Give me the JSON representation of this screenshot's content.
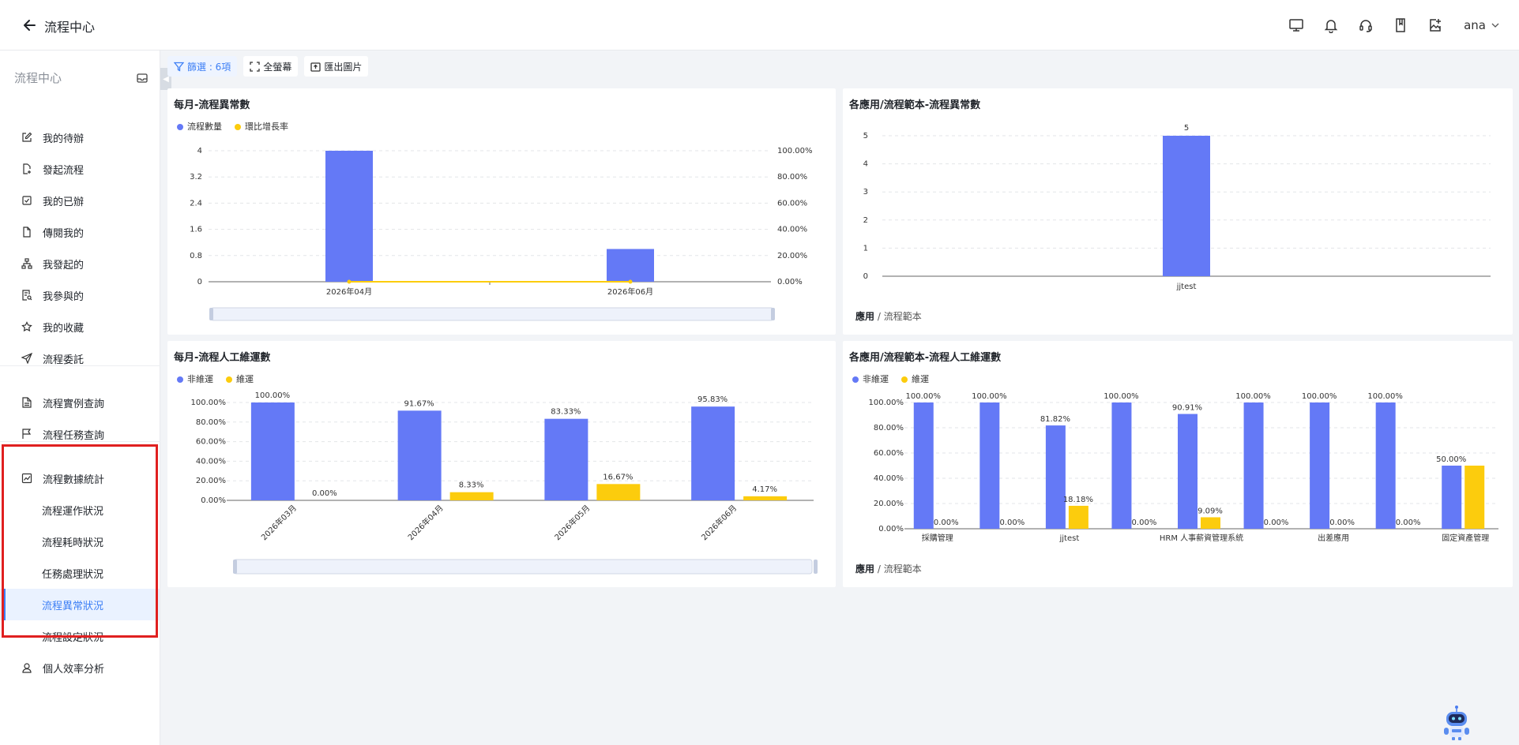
{
  "header": {
    "title": "流程中心",
    "user": "ana",
    "icons": [
      "monitor-icon",
      "bell-icon",
      "headset-icon",
      "bookmark-icon",
      "image-add-icon"
    ]
  },
  "sidebar": {
    "title": "流程中心",
    "items": [
      {
        "label": "我的待辦",
        "icon": "edit-icon"
      },
      {
        "label": "發起流程",
        "icon": "file-plus-icon"
      },
      {
        "label": "我的已辦",
        "icon": "check-square-icon"
      },
      {
        "label": "傳閱我的",
        "icon": "file-icon"
      },
      {
        "label": "我發起的",
        "icon": "sitemap-icon"
      },
      {
        "label": "我參與的",
        "icon": "file-search-icon"
      },
      {
        "label": "我的收藏",
        "icon": "star-icon"
      },
      {
        "label": "流程委託",
        "icon": "send-icon"
      },
      {
        "label": "流程實例查詢",
        "icon": "file-text-icon"
      },
      {
        "label": "流程任務查詢",
        "icon": "flag-icon"
      },
      {
        "label": "流程數據統計",
        "icon": "chart-icon"
      },
      {
        "label": "流程運作狀況"
      },
      {
        "label": "流程耗時狀況"
      },
      {
        "label": "任務處理狀況"
      },
      {
        "label": "流程異常狀況"
      },
      {
        "label": "流程設定狀況"
      },
      {
        "label": "個人效率分析",
        "icon": "user-icon"
      }
    ]
  },
  "toolbar": {
    "filter": "篩選 : 6項",
    "fullscreen": "全螢幕",
    "export": "匯出圖片"
  },
  "cards": {
    "c1": {
      "title": "每月-流程異常數",
      "legend": [
        "流程數量",
        "環比增長率"
      ]
    },
    "c2": {
      "title": "各應用/流程範本-流程異常數",
      "crumb_bold": "應用",
      "crumb_rest": " / 流程範本"
    },
    "c3": {
      "title": "每月-流程人工維運數",
      "legend": [
        "非維運",
        "維運"
      ]
    },
    "c4": {
      "title": "各應用/流程範本-流程人工維運數",
      "legend": [
        "非維運",
        "維運"
      ],
      "crumb_bold": "應用",
      "crumb_rest": " / 流程範本"
    }
  },
  "colors": {
    "blue": "#6479f6",
    "yellow": "#fccc0d",
    "accent": "#3d7ff5"
  },
  "chart_data": [
    {
      "type": "bar",
      "title": "每月-流程異常數",
      "categories": [
        "2026年04月",
        "2026年06月"
      ],
      "series": [
        {
          "name": "流程數量",
          "values": [
            4,
            1
          ]
        },
        {
          "name": "環比增長率",
          "type": "line",
          "values": [
            0,
            0
          ]
        }
      ],
      "yticks": [
        "0",
        "0.8",
        "1.6",
        "2.4",
        "3.2",
        "4"
      ],
      "y2ticks": [
        "0.00%",
        "20.00%",
        "40.00%",
        "60.00%",
        "80.00%",
        "100.00%"
      ],
      "ylim": [
        0,
        4
      ],
      "legend": "top-left"
    },
    {
      "type": "bar",
      "title": "各應用/流程範本-流程異常數",
      "categories": [
        "jjtest"
      ],
      "values": [
        5
      ],
      "value_labels": [
        "5"
      ],
      "yticks": [
        "0",
        "1",
        "2",
        "3",
        "4",
        "5"
      ],
      "ylim": [
        0,
        5
      ]
    },
    {
      "type": "bar",
      "title": "每月-流程人工維運數",
      "categories": [
        "2026年03月",
        "2026年04月",
        "2026年05月",
        "2026年06月"
      ],
      "series": [
        {
          "name": "非維運",
          "values": [
            100,
            91.67,
            83.33,
            95.83
          ],
          "labels": [
            "100.00%",
            "91.67%",
            "83.33%",
            "95.83%"
          ]
        },
        {
          "name": "維運",
          "values": [
            0,
            8.33,
            16.67,
            4.17
          ],
          "labels": [
            "0.00%",
            "8.33%",
            "16.67%",
            "4.17%"
          ]
        }
      ],
      "yticks": [
        "0.00%",
        "20.00%",
        "40.00%",
        "60.00%",
        "80.00%",
        "100.00%"
      ],
      "ylim": [
        0,
        100
      ]
    },
    {
      "type": "bar",
      "title": "各應用/流程範本-流程人工維運數",
      "categories": [
        "採購管理",
        "",
        "jjtest",
        "",
        "HRM 人事薪資管理系統",
        "",
        "出差應用",
        "",
        "固定資產管理"
      ],
      "series": [
        {
          "name": "非維運",
          "values": [
            100,
            100,
            81.82,
            100,
            90.91,
            100,
            100,
            100,
            50
          ],
          "labels": [
            "100.00%",
            "100.00%",
            "81.82%",
            "100.00%",
            "90.91%",
            "100.00%",
            "100.00%",
            "100.00%",
            "50.00%"
          ]
        },
        {
          "name": "維運",
          "values": [
            0,
            0,
            18.18,
            0,
            9.09,
            0,
            0,
            0,
            50
          ],
          "labels": [
            "0.00%",
            "0.00%",
            "18.18%",
            "0.00%",
            "9.09%",
            "0.00%",
            "0.00%",
            "0.00%",
            ""
          ]
        }
      ],
      "yticks": [
        "0.00%",
        "20.00%",
        "40.00%",
        "60.00%",
        "80.00%",
        "100.00%"
      ],
      "ylim": [
        0,
        100
      ]
    }
  ]
}
